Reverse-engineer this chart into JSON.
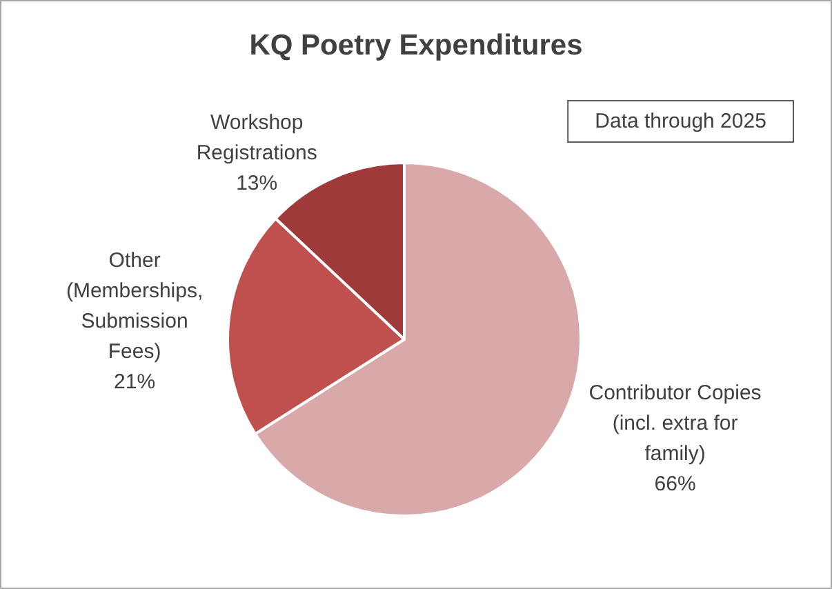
{
  "chart_data": {
    "type": "pie",
    "title": "KQ Poetry Expenditures",
    "categories": [
      "Contributor Copies (incl. extra for family)",
      "Other (Memberships, Submission Fees)",
      "Workshop Registrations"
    ],
    "values": [
      66,
      21,
      13
    ],
    "colors": [
      "#d9a9a9",
      "#c0504d",
      "#9e3a3a"
    ],
    "value_labels": [
      "66%",
      "21%",
      "13%"
    ],
    "annotations": [
      "Data through 2025"
    ]
  }
}
